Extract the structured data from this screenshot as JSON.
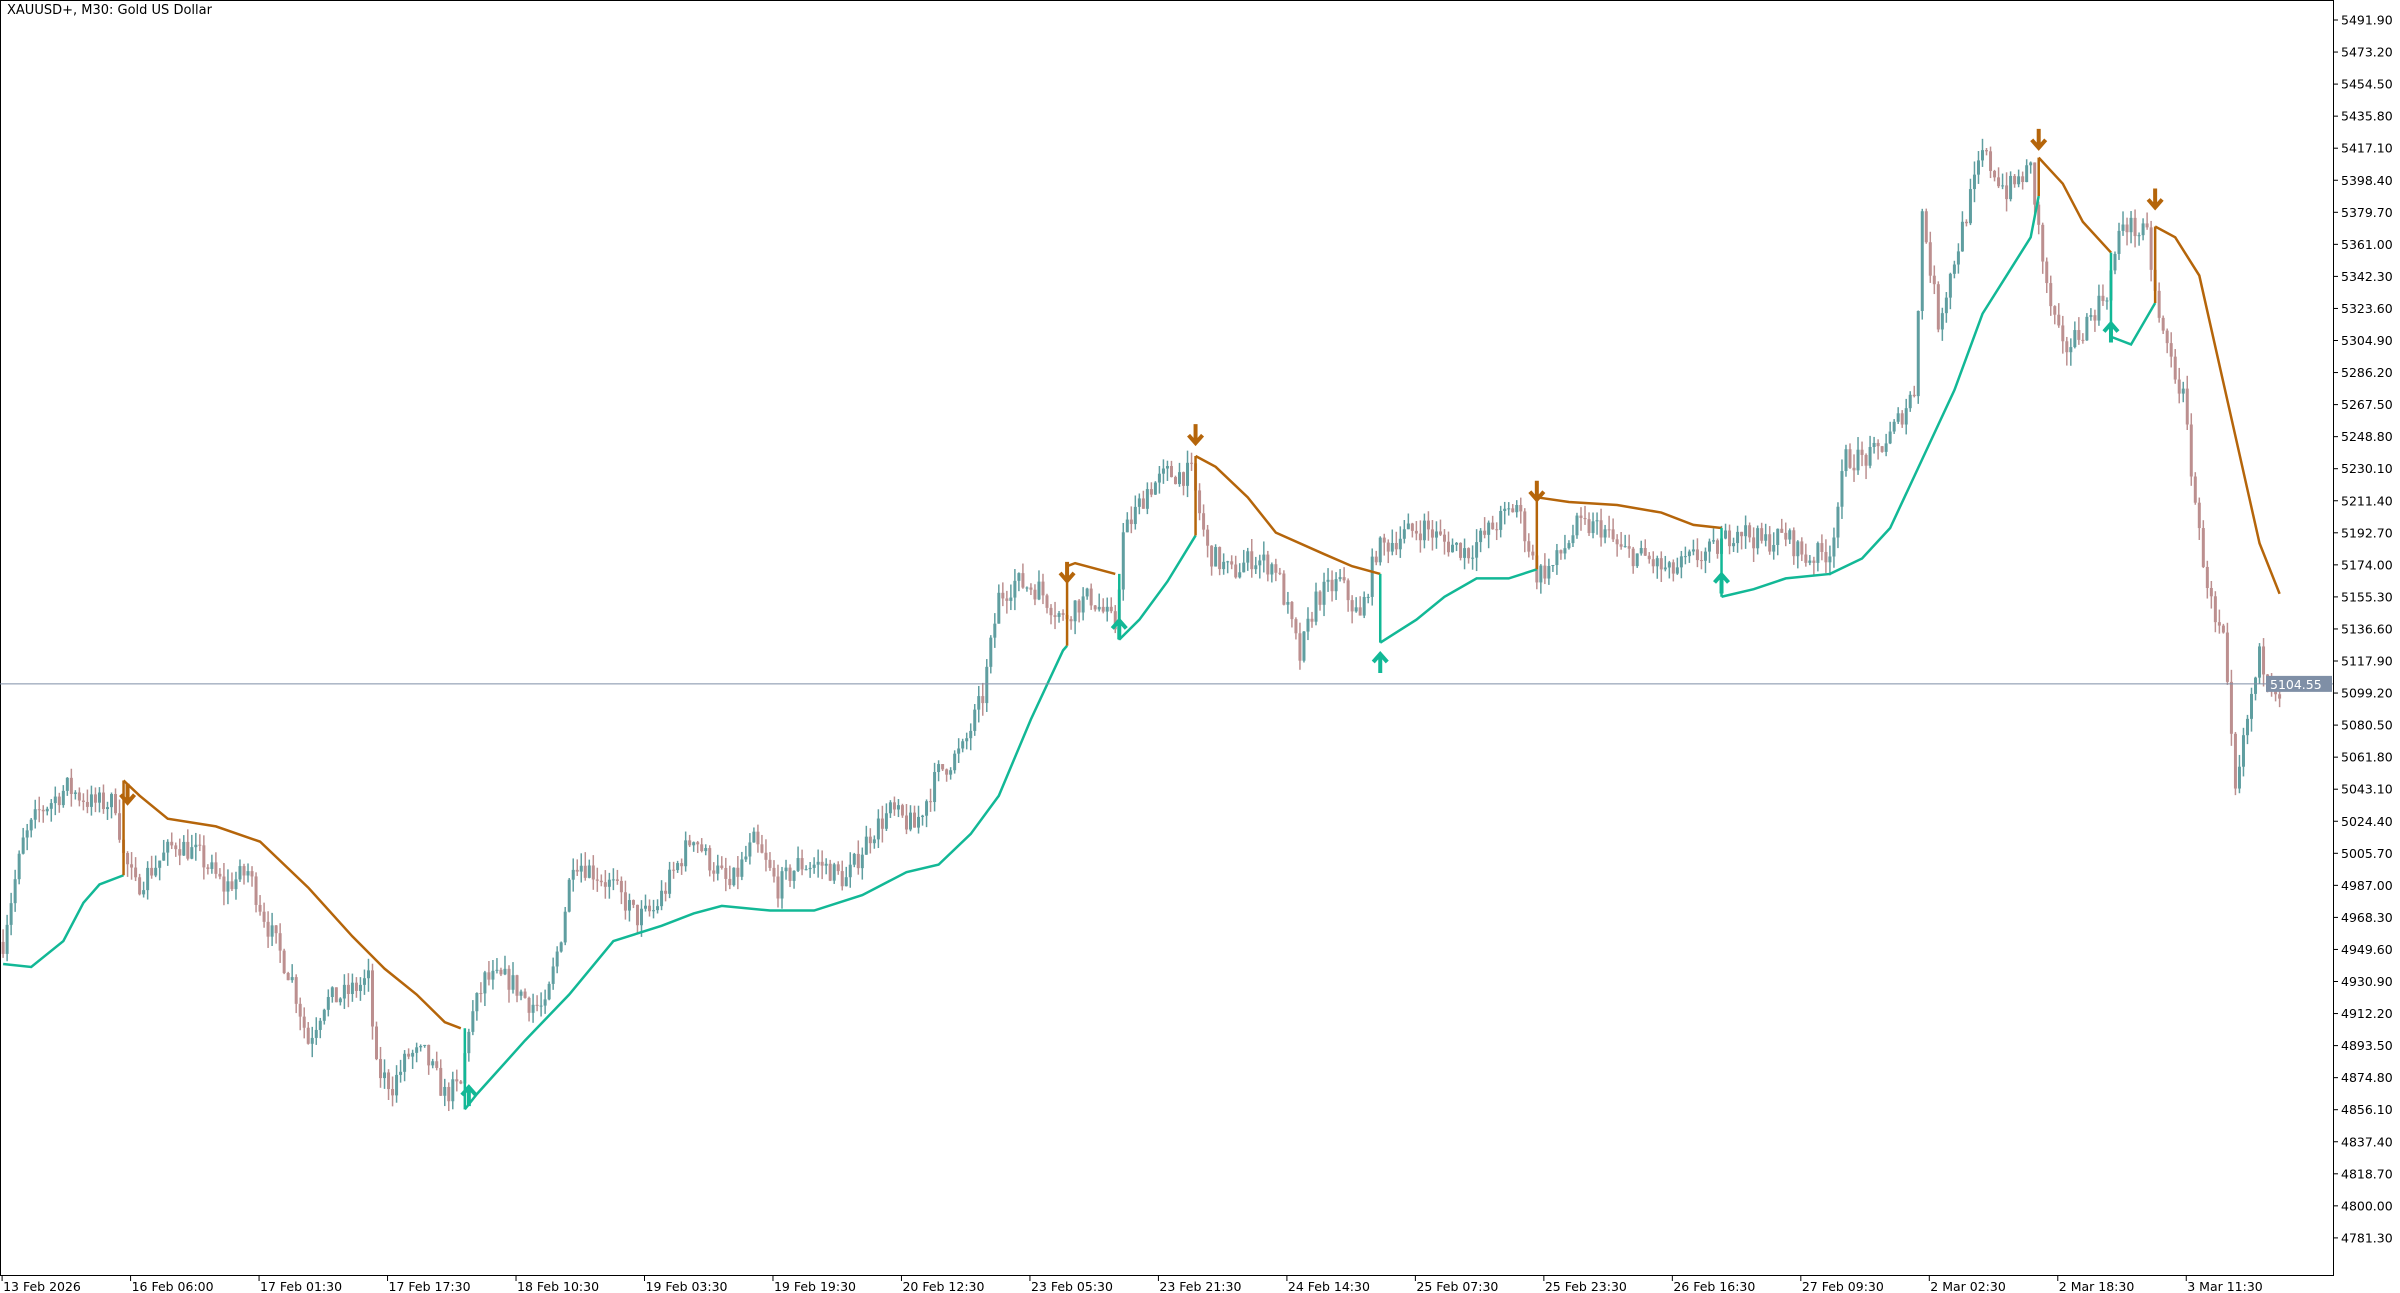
{
  "header": {
    "title": "XAUUSD+, M30:  Gold US Dollar"
  },
  "colors": {
    "bull": "#5f9ea0",
    "bear": "#bc8f8f",
    "support_line": "#12b896",
    "resistance_line": "#b5650a",
    "price_line": "#7f8fa6",
    "axis": "#000000"
  },
  "chart_data": {
    "type": "candlestick",
    "symbol": "XAUUSD+",
    "timeframe": "M30",
    "x_unit": "bar index",
    "xlim": [
      0,
      580
    ],
    "ylim": [
      4771,
      5500
    ],
    "y_ticks": [
      "5491.90",
      "5473.20",
      "5454.50",
      "5435.80",
      "5417.10",
      "5398.40",
      "5379.70",
      "5361.00",
      "5342.30",
      "5323.60",
      "5304.90",
      "5286.20",
      "5267.50",
      "5248.80",
      "5230.10",
      "5211.40",
      "5192.70",
      "5174.00",
      "5155.30",
      "5136.60",
      "5117.90",
      "5099.20",
      "5080.50",
      "5061.80",
      "5043.10",
      "5024.40",
      "5005.70",
      "4987.00",
      "4968.30",
      "4949.60",
      "4930.90",
      "4912.20",
      "4893.50",
      "4874.80",
      "4856.10",
      "4837.40",
      "4818.70",
      "4800.00",
      "4781.30"
    ],
    "x_ticks": [
      {
        "bar": 0,
        "label": "13 Feb 2026"
      },
      {
        "bar": 32,
        "label": "16 Feb 06:00"
      },
      {
        "bar": 64,
        "label": "17 Feb 01:30"
      },
      {
        "bar": 96,
        "label": "17 Feb 17:30"
      },
      {
        "bar": 128,
        "label": "18 Feb 10:30"
      },
      {
        "bar": 160,
        "label": "19 Feb 03:30"
      },
      {
        "bar": 192,
        "label": "19 Feb 19:30"
      },
      {
        "bar": 224,
        "label": "20 Feb 12:30"
      },
      {
        "bar": 256,
        "label": "23 Feb 05:30"
      },
      {
        "bar": 288,
        "label": "23 Feb 21:30"
      },
      {
        "bar": 320,
        "label": "24 Feb 14:30"
      },
      {
        "bar": 352,
        "label": "25 Feb 07:30"
      },
      {
        "bar": 384,
        "label": "25 Feb 23:30"
      },
      {
        "bar": 416,
        "label": "26 Feb 16:30"
      },
      {
        "bar": 448,
        "label": "27 Feb 09:30"
      },
      {
        "bar": 480,
        "label": "2 Mar 02:30"
      },
      {
        "bar": 512,
        "label": "2 Mar 18:30"
      },
      {
        "bar": 544,
        "label": "3 Mar 11:30"
      }
    ],
    "current_price": "5104.55",
    "price_path": [
      [
        0,
        4954
      ],
      [
        1,
        4968
      ],
      [
        5,
        5012
      ],
      [
        9,
        5030
      ],
      [
        16,
        5044
      ],
      [
        22,
        5035
      ],
      [
        28,
        5035
      ],
      [
        30,
        5004
      ],
      [
        33,
        4986
      ],
      [
        38,
        4999
      ],
      [
        43,
        5012
      ],
      [
        49,
        5004
      ],
      [
        55,
        4986
      ],
      [
        61,
        4995
      ],
      [
        66,
        4963
      ],
      [
        72,
        4932
      ],
      [
        76,
        4896
      ],
      [
        80,
        4919
      ],
      [
        85,
        4923
      ],
      [
        91,
        4932
      ],
      [
        93,
        4879
      ],
      [
        97,
        4870
      ],
      [
        101,
        4888
      ],
      [
        105,
        4888
      ],
      [
        110,
        4865
      ],
      [
        114,
        4870
      ],
      [
        116,
        4905
      ],
      [
        120,
        4932
      ],
      [
        126,
        4932
      ],
      [
        131,
        4919
      ],
      [
        135,
        4914
      ],
      [
        139,
        4959
      ],
      [
        142,
        5003
      ],
      [
        147,
        4995
      ],
      [
        152,
        4986
      ],
      [
        158,
        4968
      ],
      [
        162,
        4972
      ],
      [
        168,
        4999
      ],
      [
        172,
        5017
      ],
      [
        175,
        5004
      ],
      [
        181,
        4986
      ],
      [
        187,
        5012
      ],
      [
        193,
        4986
      ],
      [
        198,
        4999
      ],
      [
        204,
        4999
      ],
      [
        210,
        4990
      ],
      [
        216,
        5017
      ],
      [
        221,
        5030
      ],
      [
        227,
        5021
      ],
      [
        233,
        5053
      ],
      [
        239,
        5066
      ],
      [
        244,
        5097
      ],
      [
        248,
        5155
      ],
      [
        252,
        5164
      ],
      [
        258,
        5160
      ],
      [
        264,
        5142
      ],
      [
        267,
        5151
      ],
      [
        271,
        5155
      ],
      [
        277,
        5138
      ],
      [
        279,
        5191
      ],
      [
        285,
        5218
      ],
      [
        290,
        5227
      ],
      [
        296,
        5227
      ],
      [
        300,
        5182
      ],
      [
        306,
        5169
      ],
      [
        311,
        5178
      ],
      [
        317,
        5173
      ],
      [
        323,
        5120
      ],
      [
        327,
        5155
      ],
      [
        333,
        5164
      ],
      [
        338,
        5142
      ],
      [
        342,
        5182
      ],
      [
        348,
        5191
      ],
      [
        354,
        5196
      ],
      [
        359,
        5187
      ],
      [
        365,
        5182
      ],
      [
        371,
        5196
      ],
      [
        377,
        5209
      ],
      [
        382,
        5169
      ],
      [
        386,
        5173
      ],
      [
        392,
        5196
      ],
      [
        398,
        5196
      ],
      [
        403,
        5182
      ],
      [
        409,
        5178
      ],
      [
        415,
        5169
      ],
      [
        421,
        5178
      ],
      [
        426,
        5182
      ],
      [
        432,
        5196
      ],
      [
        438,
        5187
      ],
      [
        444,
        5191
      ],
      [
        449,
        5178
      ],
      [
        455,
        5182
      ],
      [
        459,
        5236
      ],
      [
        465,
        5236
      ],
      [
        470,
        5249
      ],
      [
        476,
        5276
      ],
      [
        478,
        5379
      ],
      [
        482,
        5316
      ],
      [
        488,
        5370
      ],
      [
        493,
        5414
      ],
      [
        499,
        5392
      ],
      [
        505,
        5405
      ],
      [
        509,
        5334
      ],
      [
        513,
        5298
      ],
      [
        518,
        5312
      ],
      [
        524,
        5334
      ],
      [
        528,
        5374
      ],
      [
        534,
        5365
      ],
      [
        537,
        5316
      ],
      [
        543,
        5271
      ],
      [
        547,
        5191
      ],
      [
        551,
        5138
      ],
      [
        553,
        5129
      ],
      [
        556,
        5039
      ],
      [
        559,
        5084
      ],
      [
        562,
        5120
      ],
      [
        567,
        5100
      ]
    ],
    "support_segments": [
      [
        [
          0,
          4941.1
        ],
        [
          7,
          4939.4
        ],
        [
          15,
          4954.5
        ],
        [
          20,
          4976.8
        ],
        [
          24,
          4987.5
        ],
        [
          30,
          4992.9
        ]
      ],
      [
        [
          115,
          4856.3
        ],
        [
          118,
          4865.2
        ],
        [
          130,
          4896.5
        ],
        [
          141,
          4923.3
        ],
        [
          152,
          4954.5
        ],
        [
          164,
          4963.4
        ],
        [
          172,
          4970.6
        ],
        [
          179,
          4975.0
        ],
        [
          191,
          4972.3
        ],
        [
          202,
          4972.3
        ],
        [
          214,
          4981.3
        ],
        [
          225,
          4994.7
        ],
        [
          233,
          4999.1
        ],
        [
          241,
          5017.0
        ],
        [
          248,
          5039.3
        ],
        [
          256,
          5083.9
        ],
        [
          264,
          5124.1
        ],
        [
          265,
          5126.8
        ]
      ],
      [
        [
          278,
          5130.4
        ],
        [
          283,
          5142.0
        ],
        [
          290,
          5164.3
        ],
        [
          297,
          5191.1
        ]
      ],
      [
        [
          343,
          5128.6
        ],
        [
          352,
          5142.0
        ],
        [
          359,
          5155.4
        ],
        [
          367,
          5166.1
        ],
        [
          375,
          5166.1
        ],
        [
          382,
          5171.4
        ]
      ],
      [
        [
          428,
          5155.4
        ],
        [
          436,
          5159.8
        ],
        [
          444,
          5166.1
        ],
        [
          455,
          5168.7
        ],
        [
          463,
          5177.7
        ],
        [
          470,
          5195.5
        ],
        [
          478,
          5235.7
        ],
        [
          486,
          5275.9
        ],
        [
          493,
          5320.5
        ],
        [
          499,
          5342.8
        ],
        [
          505,
          5365.1
        ],
        [
          507,
          5389.2
        ]
      ],
      [
        [
          525,
          5307.1
        ],
        [
          530,
          5302.6
        ],
        [
          536,
          5326.8
        ]
      ]
    ],
    "resistance_segments": [
      [
        [
          30,
          5048.2
        ],
        [
          34,
          5039.3
        ],
        [
          41,
          5025.9
        ],
        [
          53,
          5021.4
        ],
        [
          64,
          5012.5
        ],
        [
          76,
          4985.7
        ],
        [
          87,
          4957.2
        ],
        [
          95,
          4938.4
        ],
        [
          103,
          4923.3
        ],
        [
          110,
          4907.2
        ],
        [
          114,
          4903.6
        ]
      ],
      [
        [
          265,
          5173.2
        ],
        [
          267,
          5175.0
        ],
        [
          277,
          5168.7
        ]
      ],
      [
        [
          297,
          5237.5
        ],
        [
          302,
          5231.2
        ],
        [
          310,
          5213.4
        ],
        [
          317,
          5192.8
        ],
        [
          329,
          5180.3
        ],
        [
          336,
          5173.2
        ],
        [
          343,
          5168.7
        ]
      ],
      [
        [
          382,
          5213.4
        ],
        [
          390,
          5210.7
        ],
        [
          402,
          5208.9
        ],
        [
          413,
          5204.5
        ],
        [
          421,
          5197.3
        ],
        [
          428,
          5195.5
        ]
      ],
      [
        [
          507,
          5411.6
        ],
        [
          513,
          5396.4
        ],
        [
          518,
          5374.1
        ],
        [
          525,
          5356.2
        ]
      ],
      [
        [
          536,
          5371.4
        ],
        [
          541,
          5365.1
        ],
        [
          547,
          5342.8
        ],
        [
          553,
          5280.3
        ],
        [
          559,
          5217.8
        ],
        [
          562,
          5186.6
        ],
        [
          567,
          5157.1
        ]
      ]
    ],
    "sell_arrows": [
      [
        31,
        5039.3
      ],
      [
        265,
        5168.7
      ],
      [
        297,
        5249.1
      ],
      [
        382,
        5216.1
      ],
      [
        507,
        5421.4
      ],
      [
        536,
        5386.6
      ]
    ],
    "buy_arrows": [
      [
        116,
        4865.2
      ],
      [
        278,
        5137.5
      ],
      [
        343,
        5117.9
      ],
      [
        428,
        5164.3
      ],
      [
        525,
        5310.7
      ]
    ]
  }
}
